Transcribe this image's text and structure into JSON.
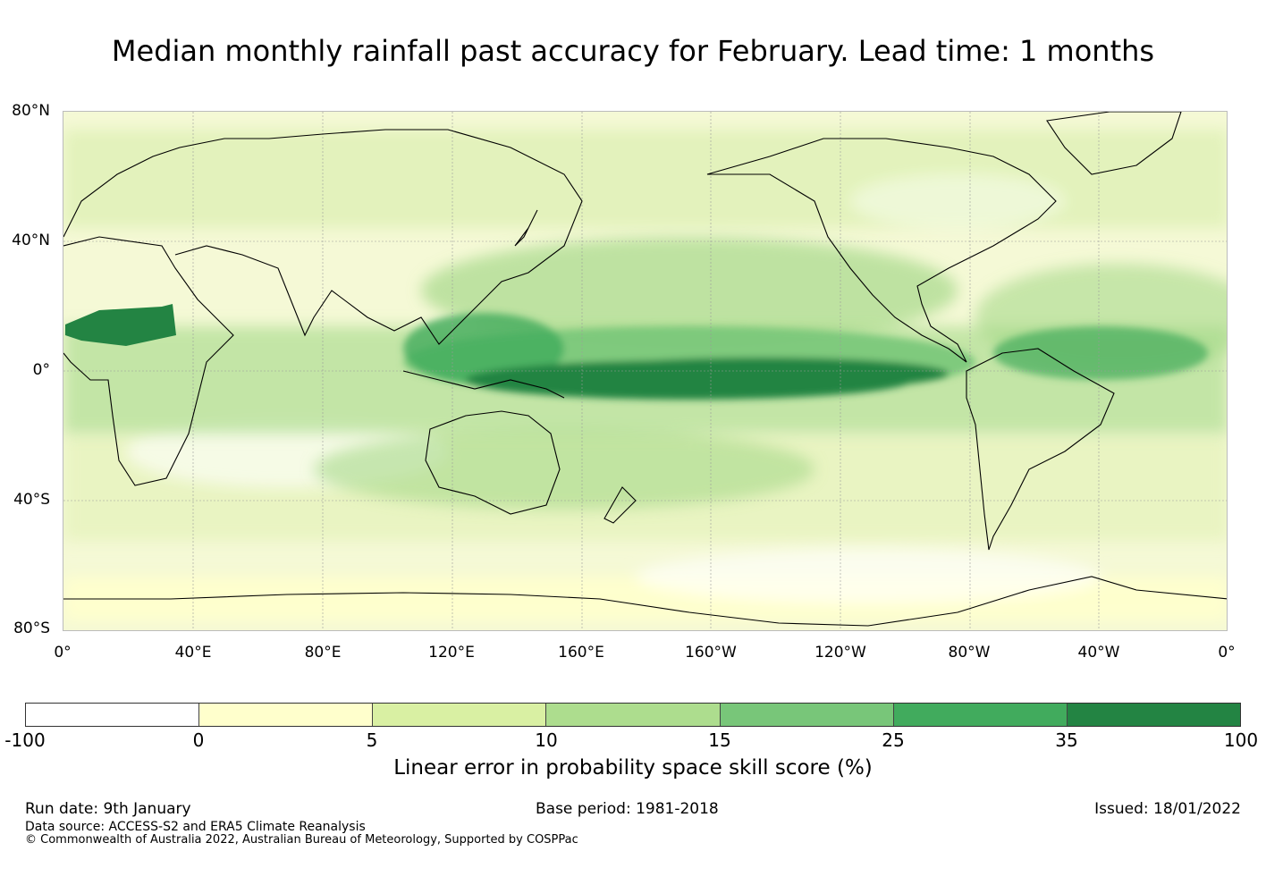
{
  "title": "Median monthly rainfall past accuracy for February. Lead time: 1 months",
  "map": {
    "projection": "Equirectangular, Pacific-centred (0° to 360°)",
    "lat_labels": [
      "80°N",
      "40°N",
      "0°",
      "40°S",
      "80°S"
    ],
    "lon_labels": [
      "0°",
      "40°E",
      "80°E",
      "120°E",
      "160°E",
      "160°W",
      "120°W",
      "80°W",
      "40°W",
      "0°"
    ],
    "regions_of_high_skill": [
      {
        "name": "Equatorial central Pacific",
        "class": "35-100"
      },
      {
        "name": "Sahara (Africa, ~10-20°N)",
        "class": "35-100"
      },
      {
        "name": "Maritime Continent / West Pacific",
        "class": "25-35"
      },
      {
        "name": "Tropical North Atlantic",
        "class": "25-35"
      }
    ]
  },
  "colorbar": {
    "ticks": [
      "-100",
      "0",
      "5",
      "10",
      "15",
      "25",
      "35",
      "100"
    ],
    "colors": [
      "#ffffff",
      "#ffffcc",
      "#d9f0a3",
      "#addd8e",
      "#78c679",
      "#41ab5d",
      "#238443"
    ],
    "label": "Linear error in probability space skill score (%)"
  },
  "footer": {
    "run_date": "Run date: 9th January",
    "base_period": "Base period: 1981-2018",
    "issued": "Issued: 18/01/2022",
    "data_source": "Data source: ACCESS-S2 and ERA5 Climate Reanalysis",
    "copyright": "© Commonwealth of Australia 2022, Australian Bureau of Meteorology, Supported by COSPPac"
  }
}
